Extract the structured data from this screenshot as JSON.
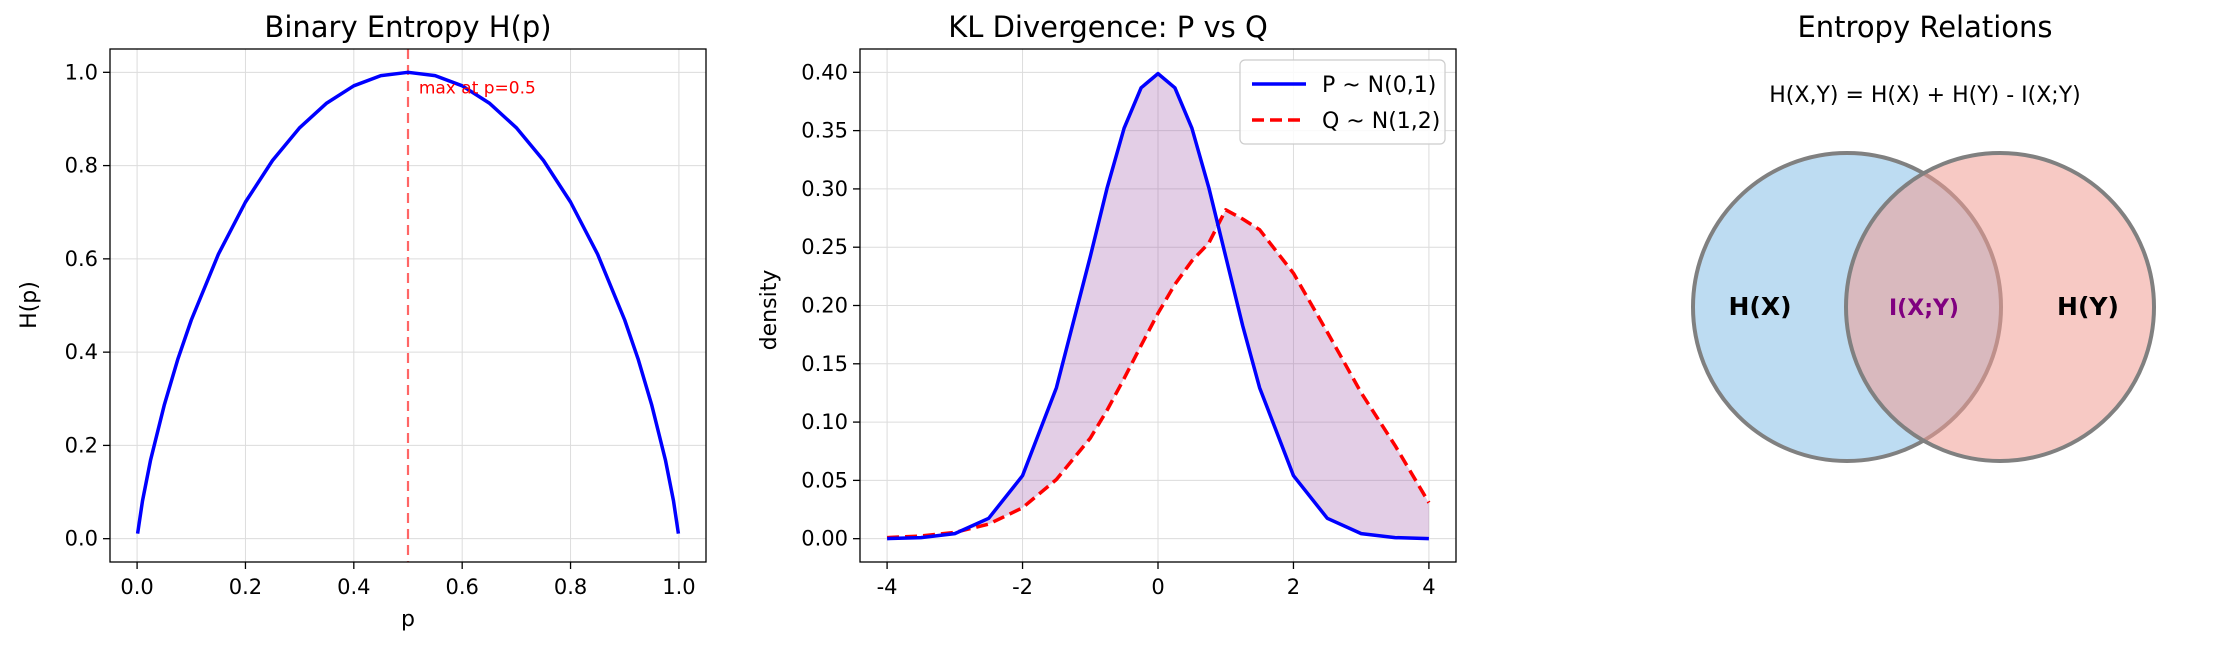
{
  "chart_data": [
    {
      "type": "line",
      "title": "Binary Entropy H(p)",
      "xlabel": "p",
      "ylabel": "H(p)",
      "xlim": [
        -0.05,
        1.05
      ],
      "ylim": [
        -0.05,
        1.05
      ],
      "xticks": [
        0.0,
        0.2,
        0.4,
        0.6,
        0.8,
        1.0
      ],
      "xtick_labels": [
        "0.0",
        "0.2",
        "0.4",
        "0.6",
        "0.8",
        "1.0"
      ],
      "yticks": [
        0.0,
        0.2,
        0.4,
        0.6,
        0.8,
        1.0
      ],
      "ytick_labels": [
        "0.0",
        "0.2",
        "0.4",
        "0.6",
        "0.8",
        "1.0"
      ],
      "grid": true,
      "series": [
        {
          "x": [
            0.001,
            0.01,
            0.025,
            0.05,
            0.075,
            0.1,
            0.15,
            0.2,
            0.25,
            0.3,
            0.35,
            0.4,
            0.45,
            0.5,
            0.55,
            0.6,
            0.65,
            0.7,
            0.75,
            0.8,
            0.85,
            0.9,
            0.925,
            0.95,
            0.975,
            0.99,
            0.999
          ],
          "y": [
            0.011,
            0.081,
            0.169,
            0.286,
            0.384,
            0.469,
            0.61,
            0.722,
            0.811,
            0.881,
            0.934,
            0.971,
            0.993,
            1.0,
            0.993,
            0.971,
            0.934,
            0.881,
            0.811,
            0.722,
            0.61,
            0.469,
            0.384,
            0.286,
            0.169,
            0.081,
            0.011
          ],
          "color": "#0000ff"
        }
      ],
      "vline": {
        "x": 0.5,
        "color": "#ff6666"
      },
      "annotation": {
        "text": "max at p=0.5",
        "x": 0.52,
        "y": 0.955,
        "color": "#ff0000"
      }
    },
    {
      "type": "line",
      "title": "KL Divergence: P vs Q",
      "xlabel": "",
      "ylabel": "density",
      "xlim": [
        -4.4,
        4.4
      ],
      "ylim": [
        -0.02,
        0.42
      ],
      "xticks": [
        -4,
        -2,
        0,
        2,
        4
      ],
      "xtick_labels": [
        "-4",
        "-2",
        "0",
        "2",
        "4"
      ],
      "yticks": [
        0.0,
        0.05,
        0.1,
        0.15,
        0.2,
        0.25,
        0.3,
        0.35,
        0.4
      ],
      "ytick_labels": [
        "0.00",
        "0.05",
        "0.10",
        "0.15",
        "0.20",
        "0.25",
        "0.30",
        "0.35",
        "0.40"
      ],
      "grid": true,
      "legend_position": "top-right",
      "x": [
        -4.0,
        -3.5,
        -3.0,
        -2.5,
        -2.0,
        -1.5,
        -1.0,
        -0.75,
        -0.5,
        -0.25,
        0.0,
        0.25,
        0.5,
        0.75,
        1.0,
        1.25,
        1.5,
        2.0,
        2.5,
        3.0,
        3.5,
        4.0
      ],
      "series": [
        {
          "name": "P ~ N(0,1)",
          "values": [
            0.0001,
            0.0009,
            0.0044,
            0.0175,
            0.054,
            0.1295,
            0.242,
            0.3011,
            0.3521,
            0.3867,
            0.3989,
            0.3867,
            0.3521,
            0.3011,
            0.242,
            0.1826,
            0.1295,
            0.054,
            0.0175,
            0.0044,
            0.0009,
            0.0001
          ],
          "color": "#0000ff",
          "style": "solid"
        },
        {
          "name": "Q ~ N(1,2)",
          "values": [
            0.0009,
            0.0023,
            0.0054,
            0.0125,
            0.0265,
            0.0508,
            0.0863,
            0.1104,
            0.1374,
            0.1657,
            0.1933,
            0.2181,
            0.2383,
            0.2535,
            0.2821,
            0.2742,
            0.265,
            0.2276,
            0.1772,
            0.1251,
            0.08,
            0.0309
          ],
          "color": "#ff0000",
          "style": "dashed"
        }
      ],
      "fill_between": {
        "color": "#9b4fa6",
        "opacity": 0.28
      }
    },
    {
      "type": "diagram",
      "title": "Entropy Relations",
      "formula": "H(X,Y) = H(X) + H(Y) - I(X;Y)",
      "labels": {
        "left": "H(X)",
        "middle": "I(X;Y)",
        "right": "H(Y)"
      },
      "colors": {
        "left": "#87bfe8",
        "right": "#f09d93",
        "middle_text": "#800080",
        "outline": "#808080"
      }
    }
  ]
}
